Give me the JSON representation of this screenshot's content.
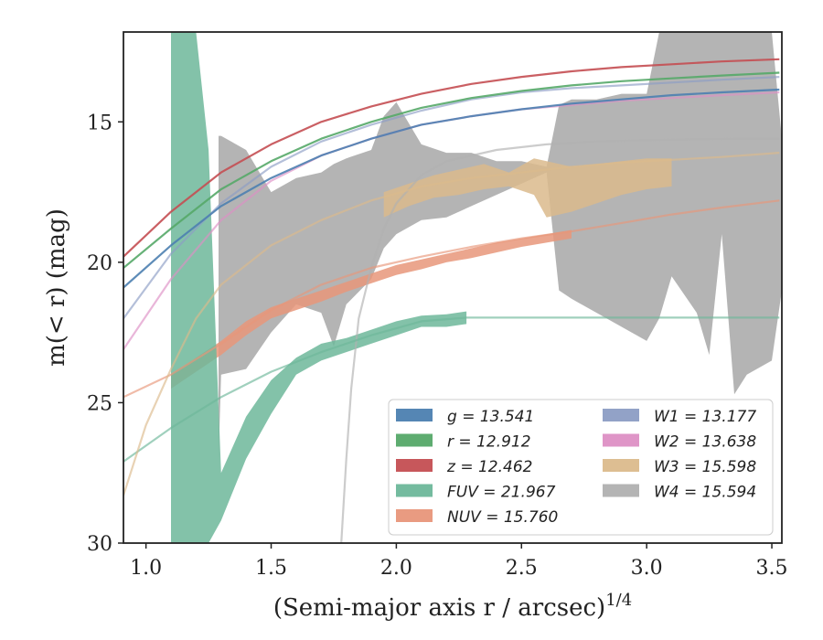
{
  "chart_data": {
    "type": "line",
    "xlabel": "(Semi-major axis r / arcsec)^{1/4}",
    "ylabel": "m(< r) (mag)",
    "xlim": [
      0.91,
      3.54
    ],
    "ylim": [
      30,
      11.8
    ],
    "y_inverted": true,
    "xticks": [
      "1.0",
      "1.5",
      "2.0",
      "2.5",
      "3.0",
      "3.5"
    ],
    "xtick_values": [
      1.0,
      1.5,
      2.0,
      2.5,
      3.0,
      3.5
    ],
    "yticks": [
      "15",
      "20",
      "25",
      "30"
    ],
    "ytick_values": [
      15,
      20,
      25,
      30
    ],
    "grid": false,
    "legend_placement": "lower-right",
    "series": [
      {
        "name": "g = 13.541",
        "color": "#4c7fb0",
        "x": [
          0.91,
          1.1,
          1.3,
          1.5,
          1.7,
          1.9,
          2.1,
          2.3,
          2.5,
          2.7,
          2.9,
          3.1,
          3.3,
          3.53
        ],
        "y": [
          20.9,
          19.4,
          18.0,
          17.0,
          16.2,
          15.6,
          15.1,
          14.8,
          14.55,
          14.35,
          14.2,
          14.05,
          13.95,
          13.85
        ],
        "band_x": [],
        "band_low": [],
        "band_high": []
      },
      {
        "name": "r = 12.912",
        "color": "#55a868",
        "x": [
          0.91,
          1.1,
          1.3,
          1.5,
          1.7,
          1.9,
          2.1,
          2.3,
          2.5,
          2.7,
          2.9,
          3.1,
          3.3,
          3.53
        ],
        "y": [
          20.2,
          18.8,
          17.4,
          16.4,
          15.6,
          15.0,
          14.5,
          14.15,
          13.9,
          13.7,
          13.55,
          13.45,
          13.35,
          13.25
        ],
        "band_x": [],
        "band_low": [],
        "band_high": []
      },
      {
        "name": "z = 12.462",
        "color": "#c44e52",
        "x": [
          0.91,
          1.1,
          1.3,
          1.5,
          1.7,
          1.9,
          2.1,
          2.3,
          2.5,
          2.7,
          2.9,
          3.1,
          3.3,
          3.53
        ],
        "y": [
          19.8,
          18.2,
          16.8,
          15.8,
          15.0,
          14.45,
          14.0,
          13.65,
          13.4,
          13.2,
          13.05,
          12.95,
          12.85,
          12.77
        ],
        "band_x": [],
        "band_low": [],
        "band_high": []
      },
      {
        "name": "FUV = 21.967",
        "color": "#6db79a",
        "x": [
          0.91,
          1.1,
          1.3,
          1.5,
          1.7,
          1.9,
          2.1,
          2.28,
          2.5,
          2.7,
          2.9,
          3.1,
          3.3,
          3.53
        ],
        "y": [
          27.1,
          25.9,
          24.8,
          23.9,
          23.2,
          22.6,
          22.1,
          21.97,
          21.97,
          21.97,
          21.97,
          21.97,
          21.97,
          21.97
        ],
        "band_x": [
          1.1,
          1.2,
          1.25,
          1.3,
          1.4,
          1.5,
          1.6,
          1.7,
          1.8,
          1.9,
          2.0,
          2.1,
          2.2,
          2.28
        ],
        "band_low": [
          11.8,
          11.8,
          16.0,
          27.5,
          25.5,
          24.2,
          23.4,
          22.9,
          22.7,
          22.4,
          22.1,
          21.9,
          21.85,
          21.75
        ],
        "band_high": [
          30.0,
          30.0,
          30.0,
          29.2,
          27.0,
          25.4,
          24.0,
          23.5,
          23.2,
          22.9,
          22.6,
          22.3,
          22.3,
          22.2
        ]
      },
      {
        "name": "NUV = 15.760",
        "color": "#e8967a",
        "x": [
          0.91,
          1.1,
          1.3,
          1.5,
          1.7,
          1.9,
          2.1,
          2.3,
          2.5,
          2.7,
          2.9,
          3.1,
          3.3,
          3.53
        ],
        "y": [
          24.8,
          24.0,
          22.9,
          21.7,
          20.8,
          20.2,
          19.8,
          19.45,
          19.15,
          18.9,
          18.6,
          18.3,
          18.05,
          17.8
        ],
        "band_x": [
          1.1,
          1.2,
          1.3,
          1.4,
          1.5,
          1.6,
          1.7,
          1.8,
          1.9,
          2.0,
          2.1,
          2.2,
          2.3,
          2.4,
          2.5,
          2.6,
          2.7
        ],
        "band_low": [
          24.0,
          23.4,
          22.8,
          22.1,
          21.6,
          21.3,
          21.0,
          20.7,
          20.4,
          20.1,
          19.9,
          19.7,
          19.5,
          19.3,
          19.15,
          19.0,
          18.85
        ],
        "band_high": [
          24.5,
          23.9,
          23.3,
          22.6,
          22.0,
          21.7,
          21.4,
          21.05,
          20.75,
          20.45,
          20.25,
          20.0,
          19.85,
          19.65,
          19.45,
          19.3,
          19.15
        ]
      },
      {
        "name": "W1 = 13.177",
        "color": "#8c9dc4",
        "x": [
          0.91,
          1.1,
          1.3,
          1.5,
          1.7,
          1.9,
          2.1,
          2.3,
          2.5,
          2.7,
          2.9,
          3.1,
          3.3,
          3.53
        ],
        "y": [
          22.0,
          19.7,
          17.9,
          16.6,
          15.7,
          15.1,
          14.6,
          14.2,
          13.95,
          13.8,
          13.7,
          13.6,
          13.5,
          13.4
        ],
        "band_x": [],
        "band_low": [],
        "band_high": []
      },
      {
        "name": "W2 = 13.638",
        "color": "#dd8fc4",
        "x": [
          0.91,
          1.1,
          1.3,
          1.5,
          1.7,
          1.9,
          2.1,
          2.3,
          2.5,
          2.7,
          2.9,
          3.1,
          3.3,
          3.53
        ],
        "y": [
          23.1,
          20.6,
          18.5,
          17.1,
          16.2,
          15.6,
          15.1,
          14.8,
          14.55,
          14.4,
          14.25,
          14.15,
          14.05,
          13.95
        ],
        "band_x": [],
        "band_low": [],
        "band_high": []
      },
      {
        "name": "W3 = 15.598",
        "color": "#dbba8c",
        "x": [
          0.91,
          1.0,
          1.1,
          1.2,
          1.3,
          1.5,
          1.7,
          1.9,
          2.1,
          2.3,
          2.5,
          2.7,
          2.9,
          3.1,
          3.3,
          3.53
        ],
        "y": [
          28.3,
          25.8,
          23.8,
          22.0,
          20.8,
          19.4,
          18.5,
          17.8,
          17.3,
          17.0,
          16.8,
          16.6,
          16.45,
          16.35,
          16.25,
          16.1
        ],
        "band_x": [
          1.95,
          2.05,
          2.15,
          2.25,
          2.35,
          2.45,
          2.55,
          2.6,
          2.7,
          2.8,
          2.9,
          3.0,
          3.1
        ],
        "band_low": [
          17.5,
          17.2,
          16.9,
          16.7,
          16.5,
          16.8,
          16.3,
          16.4,
          16.6,
          16.5,
          16.4,
          16.3,
          16.3
        ],
        "band_high": [
          18.4,
          18.0,
          17.7,
          17.6,
          17.4,
          17.3,
          17.6,
          18.4,
          18.2,
          17.9,
          17.6,
          17.4,
          17.3
        ]
      },
      {
        "name": "W4 = 15.594",
        "color": "#b0b0b0",
        "x": [
          1.78,
          1.8,
          1.82,
          1.85,
          1.9,
          1.95,
          2.0,
          2.1,
          2.2,
          2.4,
          2.6,
          2.8,
          3.0,
          3.2,
          3.4,
          3.53
        ],
        "y": [
          30.0,
          27.0,
          24.5,
          22.0,
          20.2,
          18.8,
          17.9,
          16.9,
          16.4,
          16.0,
          15.8,
          15.7,
          15.65,
          15.62,
          15.6,
          15.6
        ],
        "band_x": [
          1.29,
          1.3,
          1.4,
          1.5,
          1.6,
          1.7,
          1.75,
          1.8,
          1.9,
          1.95,
          2.0,
          2.1,
          2.2,
          2.3,
          2.4,
          2.5,
          2.6,
          2.65,
          2.7,
          2.8,
          2.9,
          3.0,
          3.05,
          3.1,
          3.2,
          3.25,
          3.3,
          3.35,
          3.4,
          3.5,
          3.54
        ],
        "band_low": [
          15.5,
          15.5,
          16.0,
          17.5,
          17.0,
          16.8,
          16.5,
          16.3,
          16.0,
          14.8,
          14.3,
          15.8,
          16.1,
          16.1,
          16.4,
          16.4,
          16.6,
          14.4,
          14.2,
          14.2,
          14.0,
          14.0,
          11.8,
          11.8,
          11.8,
          11.8,
          11.8,
          11.8,
          11.8,
          11.8,
          15.6
        ],
        "band_high": [
          27.0,
          24.0,
          23.8,
          22.5,
          21.5,
          21.8,
          23.0,
          21.5,
          20.6,
          19.5,
          19.0,
          18.5,
          18.4,
          18.0,
          17.6,
          17.2,
          16.8,
          21.0,
          21.3,
          21.8,
          22.3,
          22.8,
          22.0,
          20.5,
          21.8,
          23.3,
          19.0,
          24.7,
          24.0,
          23.5,
          21.0
        ]
      }
    ]
  }
}
